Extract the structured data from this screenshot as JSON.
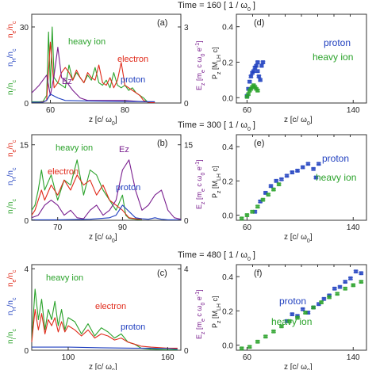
{
  "figure": {
    "time_label_prefix": "Time =",
    "time_unit": "[ 1 / ω",
    "time_unit_sub": "0",
    "time_unit_close": "]"
  },
  "rows": [
    {
      "time": "160",
      "left_tag": "(a)",
      "right_tag": "(d)",
      "left_xticks": [
        "60",
        "80"
      ],
      "left_yticks": [
        "0",
        "30"
      ],
      "left_y2ticks": [
        "0",
        "3"
      ],
      "right_xticks": [
        "60",
        "140"
      ],
      "right_yticks": [
        "0.0",
        "0.2",
        "0.4"
      ],
      "labels": {
        "heavy": "heavy ion",
        "electron": "electron",
        "ez": "Ez",
        "proton": "proton"
      },
      "right_labels": {
        "proton": "proton",
        "heavy": "heavy ion"
      }
    },
    {
      "time": "300",
      "left_tag": "(b)",
      "right_tag": "(e)",
      "left_xticks": [
        "70",
        "90"
      ],
      "left_yticks": [
        "0",
        "15"
      ],
      "left_y2ticks": [
        "0",
        "15"
      ],
      "right_xticks": [
        "60",
        "140"
      ],
      "right_yticks": [
        "0.0",
        "0.2",
        "0.4"
      ],
      "labels": {
        "heavy": "heavy ion",
        "electron": "electron",
        "ez": "Ez",
        "proton": "proton"
      },
      "right_labels": {
        "proton": "proton",
        "heavy": "heavy ion"
      }
    },
    {
      "time": "480",
      "left_tag": "(c)",
      "right_tag": "(f)",
      "left_xticks": [
        "100",
        "160"
      ],
      "left_yticks": [
        "0",
        "4"
      ],
      "left_y2ticks": [
        "0",
        "4"
      ],
      "right_xticks": [
        "60",
        "140"
      ],
      "right_yticks": [
        "0.0",
        "0.2",
        "0.4"
      ],
      "labels": {
        "heavy": "heavy ion",
        "electron": "electron",
        "proton": "proton"
      },
      "right_labels": {
        "proton": "proton",
        "heavy": "heavy ion"
      }
    }
  ],
  "axis_text": {
    "xlabel": "z [c/ ω",
    "xlabel_sub": "0",
    "xlabel_close": "]",
    "ylabel_ne": "n",
    "ylabel_ne_sub": "e",
    "ylabel_nc_sub": "c",
    "ylabel_nh": "n",
    "ylabel_nh_sub": "H",
    "ylabel_ni": "n",
    "ylabel_ni_sub": "i",
    "ylabel_slash": "/n",
    "ylabel_ez": "E",
    "ylabel_ez_sub": "z",
    "ylabel_ez_units": "[m",
    "ylabel_ez_units_e": "e",
    "ylabel_ez_units2": "c ω",
    "ylabel_ez_units_0": "0",
    "ylabel_ez_units3": "e",
    "ylabel_ez_units_m1": "-1",
    "ylabel_ez_close": "]",
    "pz": "P",
    "pz_sub": "z",
    "pz_units": "[M",
    "pz_units_sub": "LH",
    "pz_units2": "c]"
  },
  "colors": {
    "heavy_ion": "#2aa22a",
    "electron": "#e02a1a",
    "proton": "#1f3fbf",
    "ez": "#7a1f8f",
    "axis": "#333333"
  },
  "chart_data": [
    {
      "panel": "(a)",
      "type": "line",
      "xlabel": "z [c/ω0]",
      "xlim": [
        55,
        95
      ],
      "ylim_left": [
        0,
        35
      ],
      "ylim_right": [
        0,
        3.5
      ],
      "series": [
        {
          "name": "heavy ion",
          "x": [
            55,
            57,
            58,
            59,
            59.5,
            60,
            60.5,
            61,
            62,
            63,
            64,
            65,
            66,
            67,
            68,
            69,
            70,
            71,
            72,
            73,
            74,
            75,
            76,
            77,
            78,
            79,
            80,
            81,
            82,
            83,
            84,
            85,
            86,
            87,
            88
          ],
          "y": [
            0.5,
            0.5,
            0.6,
            3,
            28,
            6,
            30,
            10,
            8,
            7,
            6,
            15,
            9,
            12,
            10,
            8,
            11,
            9,
            14,
            8,
            7,
            9,
            6,
            12,
            7,
            6,
            7,
            5,
            6,
            4,
            3,
            2,
            0.5,
            0.3,
            0.3
          ]
        },
        {
          "name": "electron",
          "x": [
            55,
            57,
            58,
            59,
            60,
            61,
            62,
            63,
            64,
            65,
            66,
            67,
            68,
            69,
            70,
            71,
            72,
            73,
            74,
            75,
            76,
            77,
            78,
            79,
            80,
            81,
            82,
            83,
            84,
            85,
            86,
            87,
            88
          ],
          "y": [
            0.3,
            0.3,
            0.5,
            1,
            24,
            6,
            8,
            12,
            14,
            12,
            9,
            13,
            10,
            8,
            12,
            10,
            9,
            15,
            8,
            7,
            10,
            6,
            9,
            16,
            7,
            6,
            5,
            4,
            3,
            1,
            0.4,
            0.2,
            0.2
          ]
        },
        {
          "name": "Ez",
          "x": [
            55,
            57,
            59,
            60,
            61,
            62,
            63,
            64,
            66,
            68,
            70,
            75,
            80,
            85,
            88
          ],
          "y": [
            0.4,
            0.7,
            1.1,
            0.3,
            1.1,
            2.2,
            1.0,
            0.9,
            0.5,
            0.2,
            0.1,
            0.1,
            0.1,
            0.05,
            0.05
          ]
        },
        {
          "name": "proton",
          "x": [
            55,
            58,
            59,
            60,
            62,
            64,
            70,
            80,
            88
          ],
          "y": [
            0.3,
            0.3,
            1.0,
            3.5,
            2,
            1,
            0.8,
            0.6,
            0.5
          ]
        }
      ]
    },
    {
      "panel": "(b)",
      "type": "line",
      "xlabel": "z [c/ω0]",
      "xlim": [
        62,
        108
      ],
      "ylim_left": [
        0,
        17
      ],
      "ylim_right": [
        0,
        17
      ],
      "series": [
        {
          "name": "heavy ion",
          "x": [
            62,
            63,
            64,
            65,
            66,
            68,
            70,
            72,
            74,
            76,
            78,
            80,
            82,
            84,
            86,
            87,
            88,
            90,
            91,
            92,
            94,
            96
          ],
          "y": [
            2,
            3,
            6,
            10,
            6,
            9,
            4,
            8,
            7,
            12,
            5,
            10,
            9,
            6,
            4,
            3,
            2,
            5,
            1,
            0.4,
            0.2,
            0.1
          ]
        },
        {
          "name": "electron",
          "x": [
            62,
            63,
            64,
            65,
            66,
            68,
            70,
            72,
            74,
            76,
            78,
            80,
            82,
            84,
            86,
            88,
            90,
            92,
            94,
            96
          ],
          "y": [
            1,
            2,
            4,
            6,
            4,
            7,
            5,
            8,
            6,
            9,
            7,
            8,
            5,
            7,
            4,
            3,
            2,
            0.5,
            0.3,
            0.2
          ]
        },
        {
          "name": "Ez",
          "x": [
            62,
            64,
            66,
            68,
            70,
            72,
            74,
            76,
            78,
            80,
            82,
            84,
            86,
            88,
            90,
            92,
            94,
            96,
            98,
            100,
            102,
            104,
            106,
            108
          ],
          "y": [
            0.5,
            1,
            3,
            4,
            3,
            1,
            2,
            0.5,
            0.3,
            2,
            3,
            1,
            2,
            4,
            10,
            12,
            6,
            2,
            3,
            5,
            6,
            2,
            0.5,
            0.2
          ]
        },
        {
          "name": "proton",
          "x": [
            62,
            70,
            80,
            86,
            88,
            90,
            94,
            96,
            98,
            100,
            102,
            104,
            106,
            108
          ],
          "y": [
            0.1,
            0.1,
            0.2,
            0.5,
            1,
            3,
            0.5,
            0.3,
            0.2,
            0.5,
            0.2,
            0.1,
            0.1,
            0.1
          ]
        }
      ]
    },
    {
      "panel": "(c)",
      "type": "line",
      "xlabel": "z [c/ω0]",
      "xlim": [
        78,
        168
      ],
      "ylim_left": [
        0,
        4.2
      ],
      "ylim_right": [
        0,
        4.2
      ],
      "series": [
        {
          "name": "heavy ion",
          "x": [
            78,
            80,
            82,
            84,
            86,
            88,
            90,
            92,
            94,
            96,
            98,
            100,
            104,
            108,
            112,
            116,
            120,
            124,
            128,
            132,
            136,
            140,
            144,
            150,
            160,
            166
          ],
          "y": [
            0.5,
            3,
            1.5,
            2.5,
            1,
            2,
            1.5,
            2.4,
            1.2,
            2,
            1,
            1.6,
            1.4,
            0.8,
            1.3,
            0.7,
            1.1,
            0.9,
            0.6,
            0.8,
            0.4,
            0.3,
            0.1,
            0.05,
            0.02,
            0.02
          ]
        },
        {
          "name": "electron",
          "x": [
            78,
            80,
            82,
            84,
            86,
            88,
            90,
            92,
            94,
            96,
            98,
            100,
            104,
            108,
            112,
            116,
            120,
            124,
            128,
            132,
            136,
            140,
            144,
            150,
            160,
            166
          ],
          "y": [
            0.4,
            2,
            1,
            1.8,
            0.8,
            1.5,
            1.2,
            1.6,
            0.9,
            1.4,
            0.9,
            1.2,
            1,
            0.7,
            1,
            0.6,
            0.8,
            0.7,
            0.5,
            0.6,
            0.4,
            0.3,
            0.2,
            0.15,
            0.1,
            0.1
          ]
        },
        {
          "name": "proton",
          "x": [
            78,
            100,
            120,
            140,
            150,
            160,
            166
          ],
          "y": [
            0.15,
            0.15,
            0.12,
            0.1,
            0.1,
            0.08,
            0.05
          ]
        }
      ]
    },
    {
      "panel": "(d)",
      "type": "scatter",
      "xlabel": "z [c/ω0]",
      "ylabel": "Pz [MLH c]",
      "xlim": [
        52,
        150
      ],
      "ylim": [
        -0.03,
        0.47
      ],
      "series": [
        {
          "name": "proton",
          "x": [
            60,
            61,
            62,
            63,
            64,
            65,
            66,
            67,
            68,
            68,
            69,
            70,
            71,
            72
          ],
          "y": [
            0.01,
            0.05,
            0.09,
            0.12,
            0.14,
            0.15,
            0.17,
            0.18,
            0.2,
            0.15,
            0.12,
            0.1,
            0.18,
            0.2
          ]
        },
        {
          "name": "heavy ion",
          "x": [
            60,
            61,
            62,
            63,
            64,
            65,
            66,
            67,
            68
          ],
          "y": [
            0.005,
            0.02,
            0.04,
            0.05,
            0.06,
            0.07,
            0.06,
            0.05,
            0.04
          ]
        }
      ]
    },
    {
      "panel": "(e)",
      "type": "scatter",
      "xlabel": "z [c/ω0]",
      "ylabel": "Pz [MLH c]",
      "xlim": [
        52,
        150
      ],
      "ylim": [
        -0.03,
        0.47
      ],
      "series": [
        {
          "name": "proton",
          "x": [
            66,
            70,
            74,
            78,
            82,
            86,
            90,
            94,
            98,
            102,
            106,
            110,
            112,
            114
          ],
          "y": [
            0.02,
            0.08,
            0.13,
            0.17,
            0.2,
            0.21,
            0.23,
            0.25,
            0.26,
            0.28,
            0.3,
            0.27,
            0.22,
            0.3
          ]
        },
        {
          "name": "heavy ion",
          "x": [
            56,
            60,
            64,
            68,
            72,
            76,
            80,
            84
          ],
          "y": [
            -0.02,
            0.0,
            0.02,
            0.05,
            0.09,
            0.12,
            0.15,
            0.18
          ]
        }
      ]
    },
    {
      "panel": "(f)",
      "type": "scatter",
      "xlabel": "z [c/ω0]",
      "ylabel": "Pz [MLH c]",
      "xlim": [
        52,
        150
      ],
      "ylim": [
        -0.03,
        0.47
      ],
      "series": [
        {
          "name": "proton",
          "x": [
            90,
            94,
            98,
            102,
            106,
            110,
            114,
            118,
            122,
            126,
            130,
            134,
            138,
            142,
            146
          ],
          "y": [
            0.14,
            0.18,
            0.17,
            0.21,
            0.19,
            0.22,
            0.24,
            0.27,
            0.29,
            0.33,
            0.34,
            0.37,
            0.39,
            0.43,
            0.42
          ]
        },
        {
          "name": "heavy ion",
          "x": [
            56,
            62,
            68,
            74,
            80,
            86,
            92,
            98,
            104,
            110,
            116,
            122,
            128,
            134,
            140,
            146
          ],
          "y": [
            -0.02,
            -0.01,
            0.02,
            0.05,
            0.08,
            0.11,
            0.14,
            0.16,
            0.19,
            0.22,
            0.25,
            0.28,
            0.3,
            0.33,
            0.35,
            0.37
          ]
        }
      ]
    }
  ]
}
